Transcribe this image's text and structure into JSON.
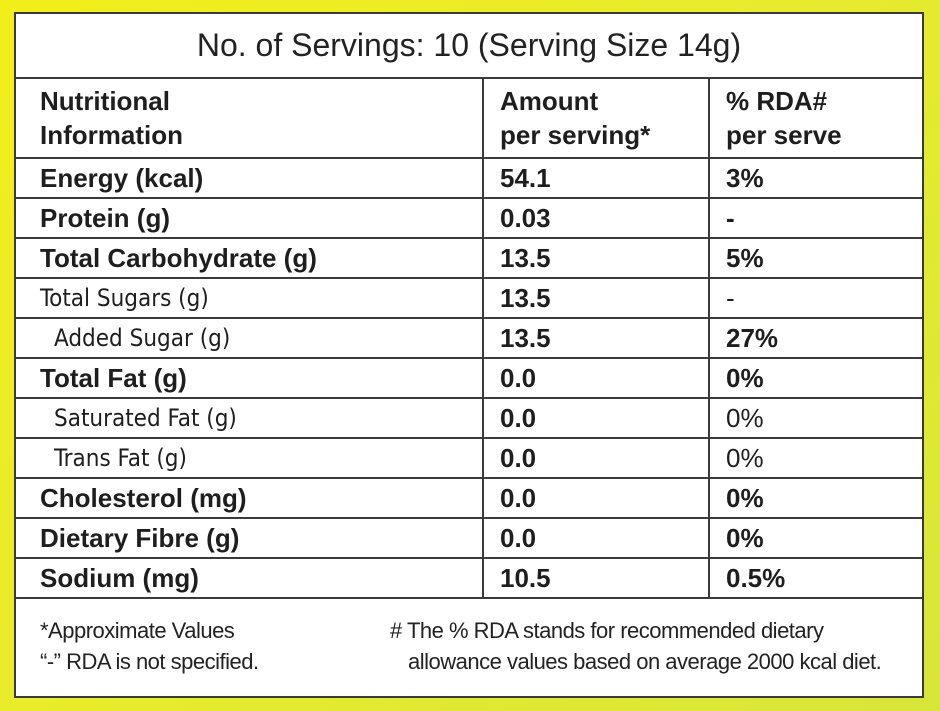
{
  "title": "No. of Servings: 10 (Serving Size 14g)",
  "table": {
    "header": [
      [
        "Nutritional",
        "Information"
      ],
      [
        "Amount",
        "per serving*"
      ],
      [
        "% RDA#",
        "per serve"
      ]
    ],
    "rows": [
      [
        "Energy (kcal)",
        "54.1",
        "3%"
      ],
      [
        "Protein (g)",
        "0.03",
        "-"
      ],
      [
        "Total Carbohydrate (g)",
        "13.5",
        "5%"
      ],
      [
        "Total Sugars (g)",
        "13.5",
        "-"
      ],
      [
        "Added Sugar (g)",
        "13.5",
        "27%"
      ],
      [
        "Total Fat (g)",
        "0.0",
        "0%"
      ],
      [
        "Saturated Fat (g)",
        "0.0",
        "0%"
      ],
      [
        "Trans Fat (g)",
        "0.0",
        "0%"
      ],
      [
        "Cholesterol (mg)",
        "0.0",
        "0%"
      ],
      [
        "Dietary Fibre (g)",
        "0.0",
        "0%"
      ],
      [
        "Sodium (mg)",
        "10.5",
        "0.5%"
      ]
    ]
  },
  "footnotes": {
    "left": [
      "*Approximate Values",
      "“-” RDA is not specified."
    ],
    "right": [
      "# The % RDA stands for recommended dietary",
      "allowance values based on average 2000 kcal diet."
    ]
  }
}
